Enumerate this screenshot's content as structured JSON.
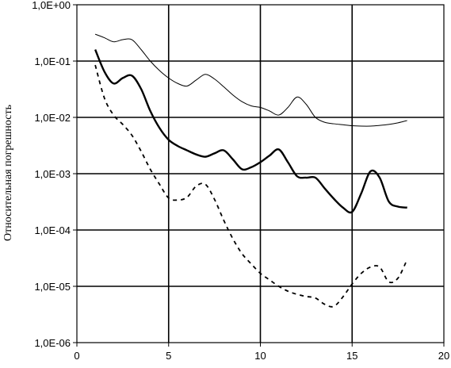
{
  "chart_data": {
    "type": "line",
    "title": "",
    "xlabel": "",
    "ylabel": "Относительная погрешность",
    "xlim": [
      0,
      20
    ],
    "ylim": [
      1e-06,
      1
    ],
    "y_scale": "log",
    "grid": {
      "x_major": true,
      "y_major": true
    },
    "legend": "none",
    "x_ticks": [
      0,
      5,
      10,
      15,
      20
    ],
    "x_tick_labels": [
      "0",
      "5",
      "10",
      "15",
      "20"
    ],
    "y_ticks": [
      1,
      0.1,
      0.01,
      0.001,
      0.0001,
      1e-05,
      1e-06
    ],
    "y_tick_labels": [
      "1,0E+00",
      "1,0E-01",
      "1,0E-02",
      "1,0E-03",
      "1,0E-04",
      "1,0E-05",
      "1,0E-06"
    ],
    "series": [
      {
        "style": "thin-solid",
        "color": "#000000",
        "x": [
          1,
          1.5,
          2,
          2.5,
          3,
          3.5,
          4,
          4.5,
          5,
          5.5,
          6,
          6.5,
          7,
          7.5,
          8,
          8.5,
          9,
          9.5,
          10,
          10.5,
          11,
          11.5,
          12,
          12.5,
          13,
          13.5,
          14,
          14.5,
          15,
          15.5,
          16,
          16.5,
          17,
          17.5,
          18
        ],
        "y": [
          0.3,
          0.26,
          0.22,
          0.24,
          0.24,
          0.16,
          0.1,
          0.068,
          0.05,
          0.04,
          0.036,
          0.046,
          0.058,
          0.048,
          0.035,
          0.025,
          0.019,
          0.016,
          0.015,
          0.013,
          0.011,
          0.015,
          0.023,
          0.017,
          0.01,
          0.0082,
          0.0077,
          0.0074,
          0.0071,
          0.007,
          0.007,
          0.0072,
          0.0075,
          0.008,
          0.0088
        ]
      },
      {
        "style": "thick-solid",
        "color": "#000000",
        "x": [
          1,
          1.5,
          2,
          2.5,
          3,
          3.5,
          4,
          4.5,
          5,
          5.5,
          6,
          6.5,
          7,
          7.5,
          8,
          8.5,
          9,
          9.5,
          10,
          10.5,
          11,
          11.5,
          12,
          12.5,
          13,
          13.5,
          14,
          14.5,
          15,
          15.5,
          16,
          16.5,
          17,
          17.5,
          18
        ],
        "y": [
          0.16,
          0.065,
          0.04,
          0.05,
          0.055,
          0.032,
          0.013,
          0.0065,
          0.004,
          0.0031,
          0.0026,
          0.0022,
          0.002,
          0.0023,
          0.0026,
          0.0018,
          0.0012,
          0.0013,
          0.0016,
          0.0021,
          0.0027,
          0.0016,
          0.0009,
          0.00085,
          0.00085,
          0.00055,
          0.00036,
          0.00025,
          0.00021,
          0.00045,
          0.0011,
          0.00085,
          0.00032,
          0.00026,
          0.00025
        ]
      },
      {
        "style": "dashed",
        "color": "#000000",
        "x": [
          1,
          1.5,
          2,
          2.5,
          3,
          3.5,
          4,
          4.5,
          5,
          5.5,
          6,
          6.5,
          7,
          7.5,
          8,
          8.5,
          9,
          9.5,
          10,
          10.5,
          11,
          11.5,
          12,
          12.5,
          13,
          13.5,
          14,
          14.5,
          15,
          15.5,
          16,
          16.5,
          17,
          17.5,
          18
        ],
        "y": [
          0.085,
          0.022,
          0.011,
          0.0075,
          0.0048,
          0.0025,
          0.0012,
          0.00065,
          0.00037,
          0.00034,
          0.00038,
          0.0006,
          0.00065,
          0.00035,
          0.00015,
          7e-05,
          3.8e-05,
          2.5e-05,
          1.7e-05,
          1.3e-05,
          1e-05,
          8.2e-06,
          7.2e-06,
          6.6e-06,
          6.2e-06,
          4.8e-06,
          4.4e-06,
          6.5e-06,
          1.1e-05,
          1.7e-05,
          2.2e-05,
          2.2e-05,
          1.2e-05,
          1.4e-05,
          3e-05
        ]
      }
    ]
  }
}
